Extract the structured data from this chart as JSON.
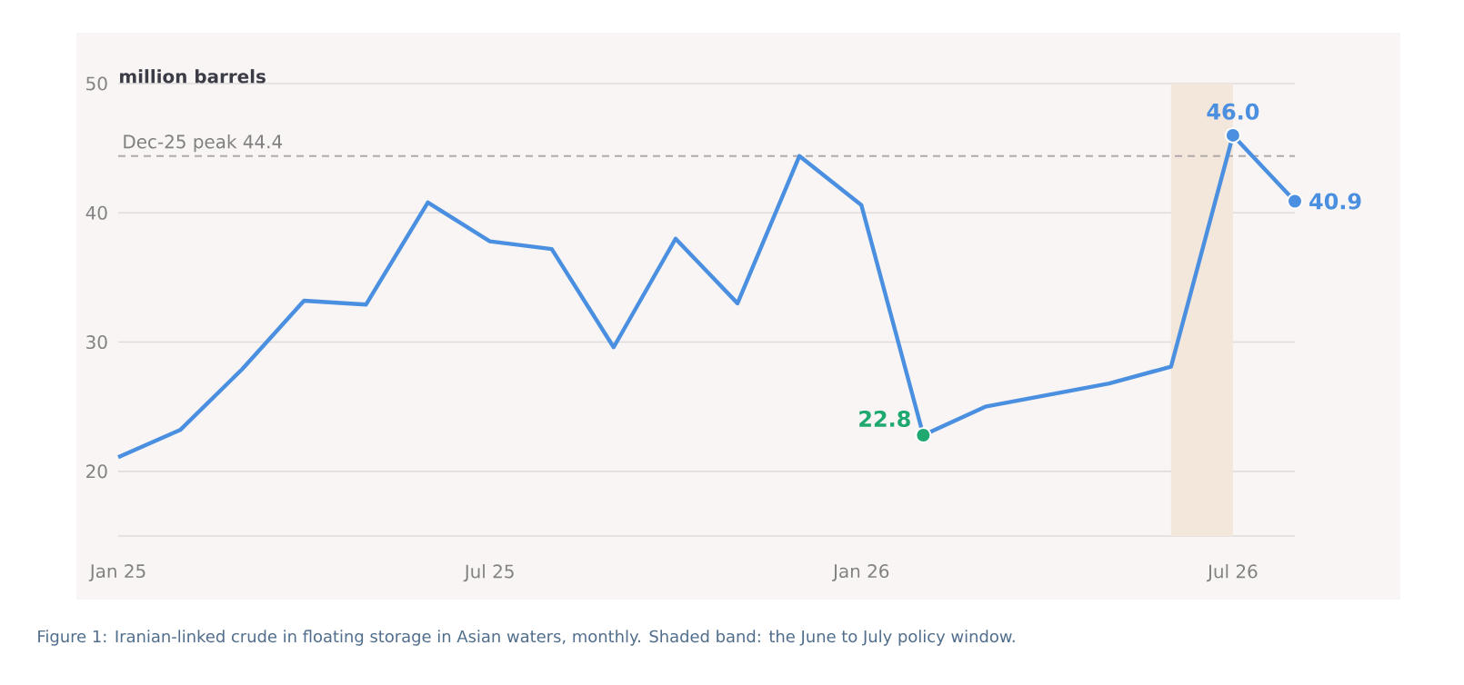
{
  "chart_data": {
    "type": "line",
    "ylabel": "million barrels",
    "x": [
      "2025-01",
      "2025-02",
      "2025-03",
      "2025-04",
      "2025-05",
      "2025-06",
      "2025-07",
      "2025-08",
      "2025-09",
      "2025-10",
      "2025-11",
      "2025-12",
      "2026-01",
      "2026-02",
      "2026-03",
      "2026-04",
      "2026-05",
      "2026-06",
      "2026-07",
      "2026-08"
    ],
    "series": [
      {
        "color": "#4a8fe0",
        "values": [
          21.1,
          23.2,
          27.9,
          33.2,
          32.9,
          40.8,
          37.8,
          37.2,
          29.6,
          38.0,
          33.0,
          44.4,
          40.6,
          22.8,
          25.0,
          25.9,
          26.8,
          28.1,
          46.0,
          40.9
        ],
        "value_labels": [
          null,
          null,
          null,
          null,
          null,
          null,
          null,
          null,
          null,
          null,
          null,
          null,
          null,
          "22.8",
          null,
          null,
          null,
          null,
          "46.0",
          "40.9"
        ],
        "colors": [
          "#4a8fe0",
          "#4a8fe0",
          "#4a8fe0",
          "#4a8fe0",
          "#4a8fe0",
          "#4a8fe0",
          "#4a8fe0",
          "#4a8fe0",
          "#4a8fe0",
          "#4a8fe0",
          "#4a8fe0",
          "#4a8fe0",
          "#4a8fe0",
          "#1fa870",
          "#4a8fe0",
          "#4a8fe0",
          "#4a8fe0",
          "#4a8fe0",
          "#4a8fe0",
          "#4a8fe0"
        ]
      }
    ],
    "xlim": [
      "2025-01",
      "2026-08"
    ],
    "xticks": [
      {
        "value": "2025-01",
        "label": "Jan 25"
      },
      {
        "value": "2025-07",
        "label": "Jul 25"
      },
      {
        "value": "2026-01",
        "label": "Jan 26"
      },
      {
        "value": "2026-07",
        "label": "Jul 26"
      }
    ],
    "ylim": [
      15,
      50
    ],
    "yticks": [
      {
        "value": 15,
        "label": null
      },
      20,
      30,
      40,
      50
    ],
    "grid": "y",
    "ref_lines": [
      {
        "axis": "y",
        "value": 44.4,
        "label": "Dec-25 peak 44.4",
        "color": "#b0aaaa",
        "line_style": "dashed"
      }
    ],
    "bands": [
      {
        "axis": "x",
        "from": "2026-06",
        "to": "2026-07",
        "color": "#f3e6da"
      }
    ],
    "annotations": [
      "Figure 1: Iranian-linked crude in floating storage in Asian waters, monthly. Shaded band: the June to July policy window."
    ]
  }
}
